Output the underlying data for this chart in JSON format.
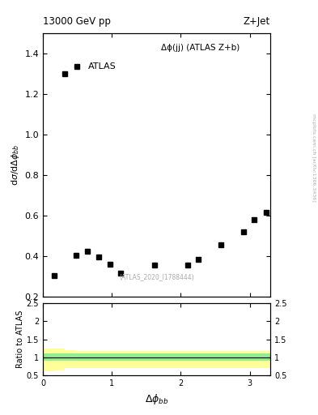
{
  "title_left": "13000 GeV pp",
  "title_right": "Z+Jet",
  "legend_label": "Δϕ(jj) (ATLAS Z+b)",
  "atlas_label": "ATLAS",
  "watermark": "(ATLAS_2020_I1788444)",
  "ylabel_main": "dσ/dΔϕₛₛ",
  "ylabel_ratio": "Ratio to ATLAS",
  "xlabel": "Δϕₛₛ",
  "right_label": "mcplots.cern.ch [arXiv:1306.3436]",
  "x_data": [
    0.16,
    0.32,
    0.48,
    0.65,
    0.81,
    0.97,
    1.13,
    1.62,
    2.1,
    2.26,
    2.58,
    2.91,
    3.07,
    3.24
  ],
  "y_data": [
    0.305,
    1.3,
    0.405,
    0.425,
    0.395,
    0.36,
    0.315,
    0.355,
    0.355,
    0.385,
    0.455,
    0.52,
    0.58,
    0.615
  ],
  "ylim_main": [
    0.2,
    1.5
  ],
  "xlim": [
    0,
    3.3
  ],
  "ylim_ratio": [
    0.5,
    2.5
  ],
  "green_band_x": [
    0.0,
    0.16,
    0.32,
    0.48,
    3.3
  ],
  "green_band_upper": [
    1.1,
    1.1,
    1.1,
    1.1,
    1.1
  ],
  "green_band_lower": [
    0.9,
    0.9,
    0.9,
    0.9,
    0.9
  ],
  "yellow_band_x": [
    0.0,
    0.16,
    0.32,
    0.48,
    3.3
  ],
  "yellow_band_upper": [
    1.25,
    1.25,
    1.2,
    1.18,
    1.18
  ],
  "yellow_band_lower": [
    0.62,
    0.65,
    0.7,
    0.72,
    0.72
  ],
  "marker_color": "black",
  "marker_style": "s",
  "marker_size": 4,
  "green_color": "#90EE90",
  "yellow_color": "#FFFF99",
  "right_label_color": "#aaaaaa",
  "background_color": "#ffffff"
}
